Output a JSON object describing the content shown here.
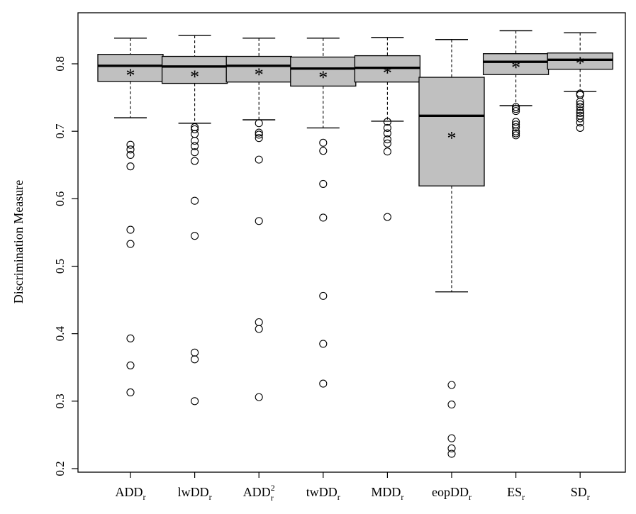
{
  "chart_data": {
    "type": "box",
    "title": "",
    "xlabel": "",
    "ylabel": "Discrimination Measure",
    "ylim": [
      0.2,
      0.85
    ],
    "yticks": [
      "0.2",
      "0.3",
      "0.4",
      "0.5",
      "0.6",
      "0.7",
      "0.8"
    ],
    "grid": false,
    "colors": {
      "box_fill": "#c0c0c0",
      "stroke": "#000000"
    },
    "categories": [
      {
        "base": "ADD",
        "sub": "r",
        "sup": ""
      },
      {
        "base": "lwDD",
        "sub": "r",
        "sup": ""
      },
      {
        "base": "ADD",
        "sub": "r",
        "sup": "2"
      },
      {
        "base": "twDD",
        "sub": "r",
        "sup": ""
      },
      {
        "base": "MDD",
        "sub": "r",
        "sup": ""
      },
      {
        "base": "eopDD",
        "sub": "r",
        "sup": ""
      },
      {
        "base": "ES",
        "sub": "r",
        "sup": ""
      },
      {
        "base": "SD",
        "sub": "r",
        "sup": ""
      }
    ],
    "boxes": [
      {
        "whisker_low": 0.72,
        "q1": 0.774,
        "median": 0.797,
        "q3": 0.814,
        "whisker_high": 0.838,
        "mean": 0.783,
        "outliers": [
          0.68,
          0.673,
          0.665,
          0.648,
          0.554,
          0.533,
          0.393,
          0.353,
          0.313
        ]
      },
      {
        "whisker_low": 0.712,
        "q1": 0.771,
        "median": 0.796,
        "q3": 0.811,
        "whisker_high": 0.842,
        "mean": 0.781,
        "outliers": [
          0.706,
          0.703,
          0.696,
          0.686,
          0.678,
          0.669,
          0.656,
          0.597,
          0.545,
          0.372,
          0.362,
          0.3
        ]
      },
      {
        "whisker_low": 0.717,
        "q1": 0.773,
        "median": 0.797,
        "q3": 0.811,
        "whisker_high": 0.838,
        "mean": 0.784,
        "outliers": [
          0.712,
          0.698,
          0.695,
          0.69,
          0.658,
          0.567,
          0.417,
          0.407,
          0.306
        ]
      },
      {
        "whisker_low": 0.705,
        "q1": 0.767,
        "median": 0.793,
        "q3": 0.81,
        "whisker_high": 0.838,
        "mean": 0.78,
        "outliers": [
          0.683,
          0.671,
          0.622,
          0.572,
          0.456,
          0.385,
          0.326
        ]
      },
      {
        "whisker_low": 0.715,
        "q1": 0.773,
        "median": 0.794,
        "q3": 0.812,
        "whisker_high": 0.839,
        "mean": 0.787,
        "outliers": [
          0.714,
          0.705,
          0.697,
          0.688,
          0.682,
          0.67,
          0.573
        ]
      },
      {
        "whisker_low": 0.462,
        "q1": 0.619,
        "median": 0.723,
        "q3": 0.78,
        "whisker_high": 0.836,
        "mean": 0.69,
        "outliers": [
          0.324,
          0.295,
          0.245,
          0.23,
          0.222
        ]
      },
      {
        "whisker_low": 0.738,
        "q1": 0.784,
        "median": 0.803,
        "q3": 0.815,
        "whisker_high": 0.849,
        "mean": 0.795,
        "outliers": [
          0.736,
          0.733,
          0.73,
          0.714,
          0.71,
          0.706,
          0.7,
          0.697,
          0.694
        ]
      },
      {
        "whisker_low": 0.759,
        "q1": 0.792,
        "median": 0.806,
        "q3": 0.816,
        "whisker_high": 0.846,
        "mean": 0.801,
        "outliers": [
          0.756,
          0.754,
          0.744,
          0.74,
          0.736,
          0.731,
          0.727,
          0.723,
          0.719,
          0.713,
          0.705
        ]
      }
    ]
  }
}
